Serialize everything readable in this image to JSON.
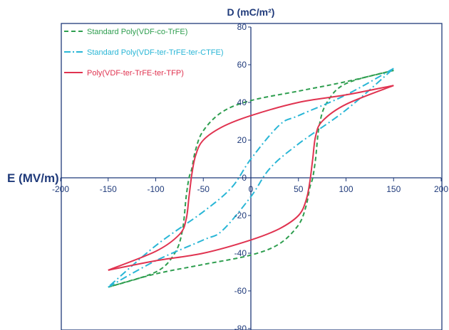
{
  "chart_data": {
    "type": "line",
    "xlabel": "E (MV/m)",
    "ylabel": "D (mC/m²)",
    "xlim": [
      -200,
      200
    ],
    "ylim": [
      -80,
      80
    ],
    "x_ticks": [
      "-200",
      "-150",
      "-100",
      "-50",
      "0",
      "50",
      "100",
      "150",
      "200"
    ],
    "y_ticks": [
      "80",
      "60",
      "40",
      "20",
      "0",
      "-20",
      "-40",
      "-60",
      "-80"
    ],
    "grid": false,
    "legend_position": "top-left",
    "series": [
      {
        "name": "Standard Poly(VDF-co-TrFE)",
        "color": "#2e9e4f",
        "dash": "dashed",
        "branch_upper": [
          [
            150,
            57
          ],
          [
            100,
            51
          ],
          [
            50,
            46
          ],
          [
            0,
            41
          ],
          [
            -30,
            35
          ],
          [
            -50,
            25
          ],
          [
            -58,
            15
          ],
          [
            -62,
            5
          ],
          [
            -65,
            0
          ],
          [
            -68,
            -10
          ],
          [
            -72,
            -28
          ],
          [
            -80,
            -40
          ],
          [
            -100,
            -50
          ],
          [
            -150,
            -58
          ]
        ],
        "branch_lower": [
          [
            -150,
            -58
          ],
          [
            -100,
            -51
          ],
          [
            -50,
            -46
          ],
          [
            0,
            -41
          ],
          [
            30,
            -35
          ],
          [
            50,
            -25
          ],
          [
            58,
            -15
          ],
          [
            62,
            -5
          ],
          [
            65,
            0
          ],
          [
            68,
            10
          ],
          [
            72,
            28
          ],
          [
            80,
            40
          ],
          [
            100,
            50
          ],
          [
            150,
            57
          ]
        ]
      },
      {
        "name": "Standard Poly(VDF-ter-TrFE-ter-CTFE)",
        "color": "#29b6d6",
        "dash": "dashdot",
        "branch_upper": [
          [
            150,
            58
          ],
          [
            100,
            44
          ],
          [
            50,
            33
          ],
          [
            30,
            28
          ],
          [
            0,
            10
          ],
          [
            -20,
            -5
          ],
          [
            -50,
            -18
          ],
          [
            -100,
            -36
          ],
          [
            -150,
            -58
          ]
        ],
        "branch_lower": [
          [
            -150,
            -58
          ],
          [
            -100,
            -44
          ],
          [
            -50,
            -33
          ],
          [
            -30,
            -28
          ],
          [
            0,
            -10
          ],
          [
            20,
            5
          ],
          [
            50,
            18
          ],
          [
            100,
            36
          ],
          [
            150,
            58
          ]
        ]
      },
      {
        "name": "Poly(VDF-ter-TrFE-ter-TFP)",
        "color": "#e03350",
        "dash": "solid",
        "branch_upper": [
          [
            150,
            49
          ],
          [
            100,
            44
          ],
          [
            50,
            40
          ],
          [
            0,
            33
          ],
          [
            -30,
            27
          ],
          [
            -50,
            20
          ],
          [
            -58,
            12
          ],
          [
            -62,
            2
          ],
          [
            -65,
            -10
          ],
          [
            -68,
            -22
          ],
          [
            -75,
            -30
          ],
          [
            -100,
            -39
          ],
          [
            -150,
            -49
          ]
        ],
        "branch_lower": [
          [
            -150,
            -49
          ],
          [
            -100,
            -44
          ],
          [
            -50,
            -40
          ],
          [
            0,
            -33
          ],
          [
            30,
            -27
          ],
          [
            50,
            -20
          ],
          [
            58,
            -12
          ],
          [
            62,
            -2
          ],
          [
            65,
            10
          ],
          [
            68,
            22
          ],
          [
            75,
            30
          ],
          [
            100,
            39
          ],
          [
            150,
            49
          ]
        ]
      }
    ]
  }
}
